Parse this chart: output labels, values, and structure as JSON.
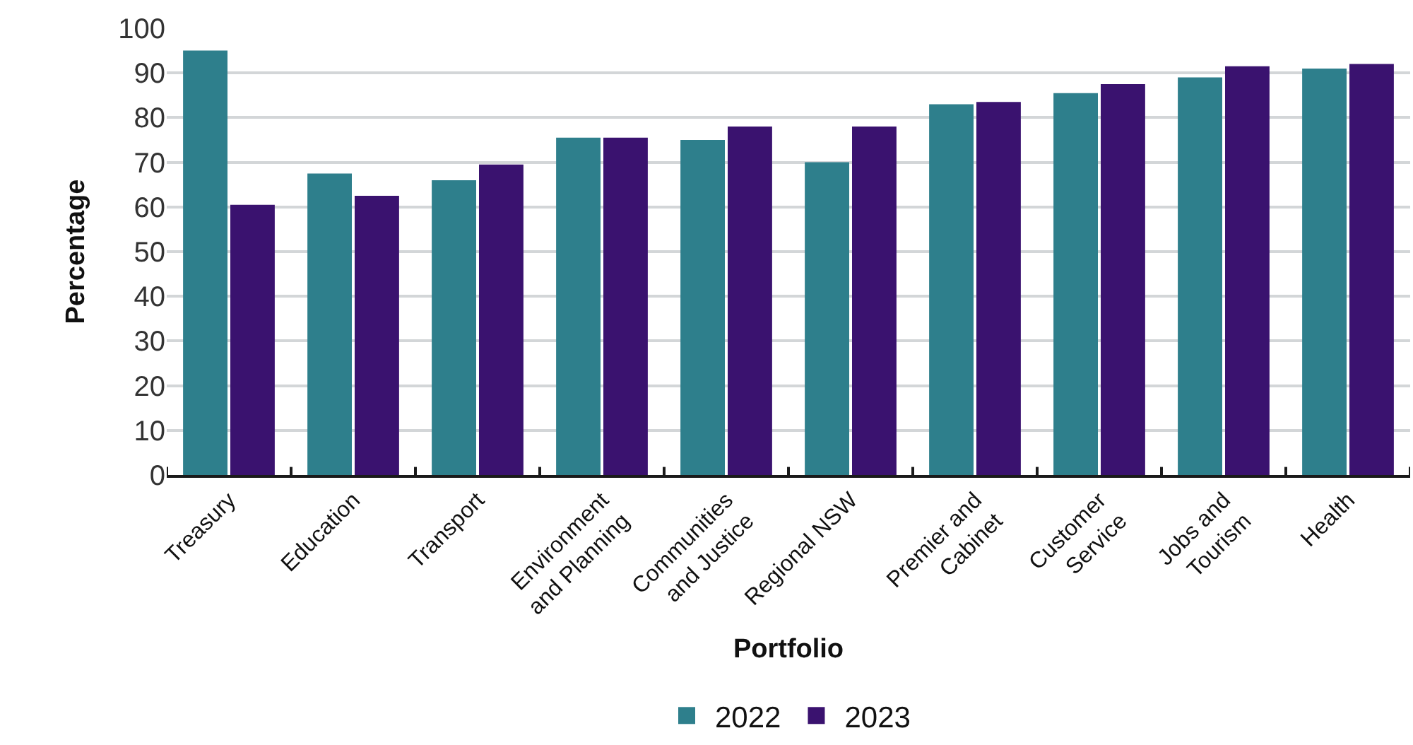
{
  "chart_data": {
    "type": "bar",
    "xlabel": "Portfolio",
    "ylabel": "Percentage",
    "categories": [
      "Treasury",
      "Education",
      "Transport",
      "Environment and Planning",
      "Communities and Justice",
      "Regional NSW",
      "Premier and Cabinet",
      "Customer Service",
      "Jobs and Tourism",
      "Health"
    ],
    "series": [
      {
        "name": "2022",
        "color": "#2e7f8c",
        "values": [
          95,
          67.5,
          66,
          75.5,
          75,
          70,
          83,
          85.5,
          89,
          91
        ]
      },
      {
        "name": "2023",
        "color": "#3a126f",
        "values": [
          60.5,
          62.5,
          69.5,
          75.5,
          78,
          78,
          83.5,
          87.5,
          91.5,
          92
        ]
      }
    ],
    "ylim": [
      0,
      100
    ],
    "yticks": [
      0,
      10,
      20,
      30,
      40,
      50,
      60,
      70,
      80,
      90,
      100
    ],
    "grid": "y",
    "legend": "bottom"
  }
}
